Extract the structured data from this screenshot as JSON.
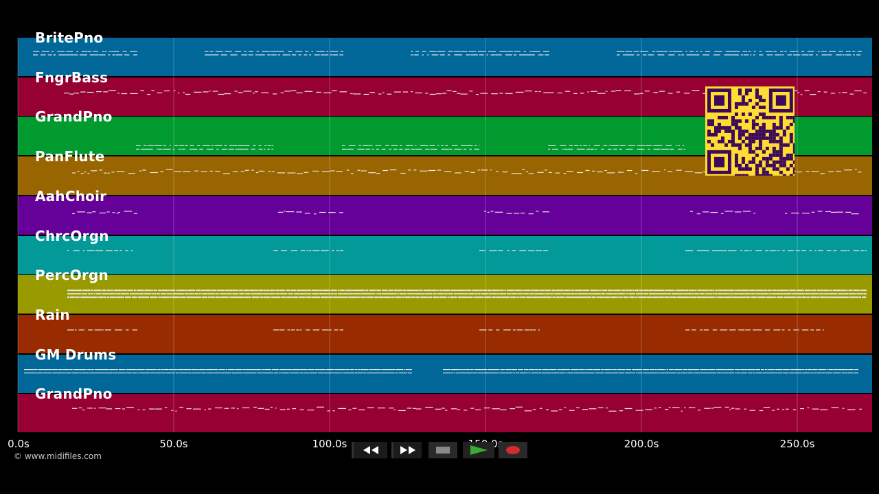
{
  "tracks": [
    {
      "name": "BritePno",
      "color": "#016698"
    },
    {
      "name": "FngrBass",
      "color": "#970033"
    },
    {
      "name": "GrandPno",
      "color": "#019a2f"
    },
    {
      "name": "PanFlute",
      "color": "#996500"
    },
    {
      "name": "AahChoir",
      "color": "#650099"
    },
    {
      "name": "ChrcOrgn",
      "color": "#029998"
    },
    {
      "name": "PercOrgn",
      "color": "#999900"
    },
    {
      "name": "Rain",
      "color": "#982b00"
    },
    {
      "name": "GM Drums",
      "color": "#016698"
    },
    {
      "name": "GrandPno",
      "color": "#970033"
    }
  ],
  "timeline": {
    "ticks": [
      "0.0s",
      "50.0s",
      "100.0s",
      "150.0s",
      "200.0s",
      "250.0s"
    ],
    "tick_values": [
      0,
      50,
      100,
      150,
      200,
      250
    ],
    "max_seconds": 274
  },
  "copyright": "© www.midifiles.com",
  "controls": {
    "rewind": "rewind-icon",
    "fast_forward": "fast-forward-icon",
    "stop": "stop-icon",
    "play": "play-icon",
    "record": "record-icon"
  },
  "colors": {
    "background": "#000000",
    "qr_background": "#ffdd33",
    "qr_foreground": "#3d0a5a",
    "play_green": "#3aaa35",
    "record_red": "#d62b2b"
  }
}
